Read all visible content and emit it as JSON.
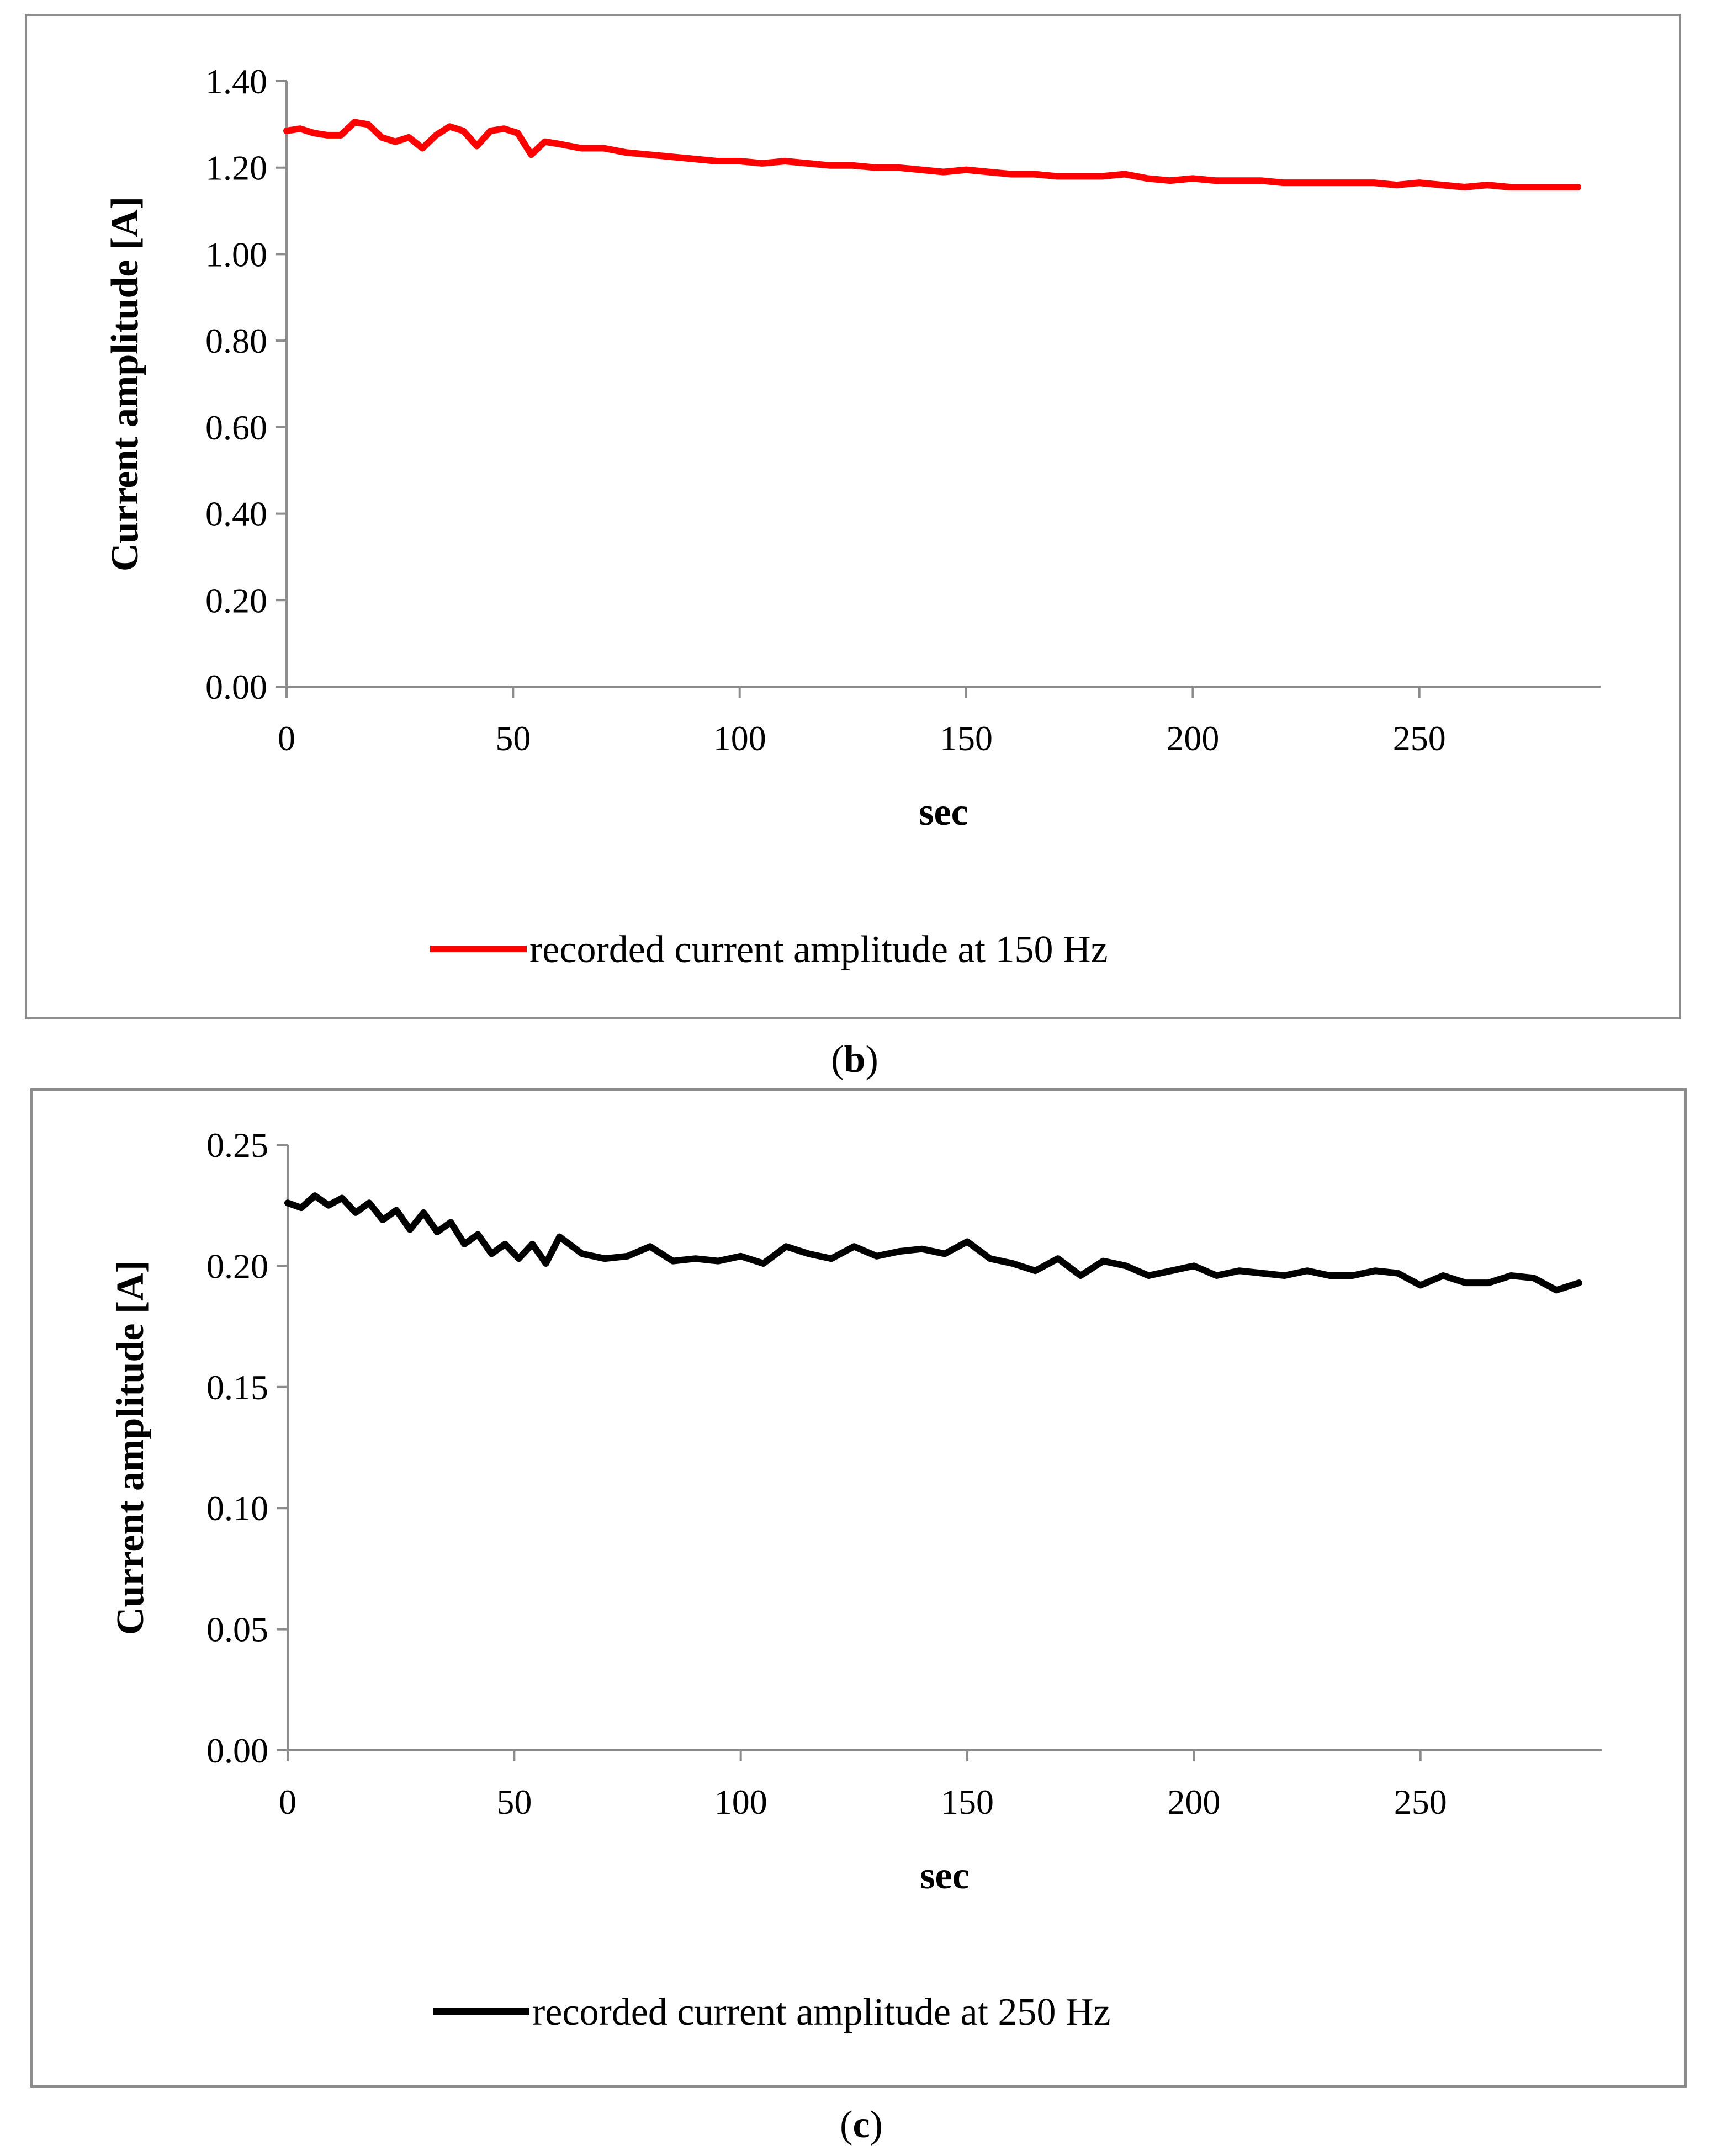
{
  "chart_data": [
    {
      "type": "line",
      "panel_label": "b",
      "xlabel": "sec",
      "ylabel": "Current amplitude [A]",
      "xlim": [
        0,
        290
      ],
      "ylim": [
        0,
        1.4
      ],
      "xticks": [
        "0",
        "50",
        "100",
        "150",
        "200",
        "250"
      ],
      "yticks": [
        "0.00",
        "0.20",
        "0.40",
        "0.60",
        "0.80",
        "1.00",
        "1.20",
        "1.40"
      ],
      "grid": false,
      "legend": "bottom-center",
      "series": [
        {
          "name": "recorded current amplitude at 150 Hz",
          "color": "#ff0000",
          "x": [
            0,
            3,
            6,
            9,
            12,
            15,
            18,
            21,
            24,
            27,
            30,
            33,
            36,
            39,
            42,
            45,
            48,
            51,
            54,
            57,
            60,
            65,
            70,
            75,
            80,
            85,
            90,
            95,
            100,
            105,
            110,
            115,
            120,
            125,
            130,
            135,
            140,
            145,
            150,
            155,
            160,
            165,
            170,
            175,
            180,
            185,
            190,
            195,
            200,
            205,
            210,
            215,
            220,
            225,
            230,
            235,
            240,
            245,
            250,
            255,
            260,
            265,
            270,
            275,
            280,
            285
          ],
          "values": [
            1.285,
            1.29,
            1.28,
            1.275,
            1.275,
            1.305,
            1.3,
            1.27,
            1.26,
            1.27,
            1.245,
            1.275,
            1.295,
            1.285,
            1.25,
            1.285,
            1.29,
            1.28,
            1.23,
            1.26,
            1.255,
            1.245,
            1.245,
            1.235,
            1.23,
            1.225,
            1.22,
            1.215,
            1.215,
            1.21,
            1.215,
            1.21,
            1.205,
            1.205,
            1.2,
            1.2,
            1.195,
            1.19,
            1.195,
            1.19,
            1.185,
            1.185,
            1.18,
            1.18,
            1.18,
            1.185,
            1.175,
            1.17,
            1.175,
            1.17,
            1.17,
            1.17,
            1.165,
            1.165,
            1.165,
            1.165,
            1.165,
            1.16,
            1.165,
            1.16,
            1.155,
            1.16,
            1.155,
            1.155,
            1.155,
            1.155
          ]
        }
      ]
    },
    {
      "type": "line",
      "panel_label": "c",
      "xlabel": "sec",
      "ylabel": "Current amplitude [A]",
      "xlim": [
        0,
        290
      ],
      "ylim": [
        0,
        0.25
      ],
      "xticks": [
        "0",
        "50",
        "100",
        "150",
        "200",
        "250"
      ],
      "yticks": [
        "0.00",
        "0.05",
        "0.10",
        "0.15",
        "0.20",
        "0.25"
      ],
      "grid": false,
      "legend": "bottom-center",
      "series": [
        {
          "name": "recorded current amplitude at 250 Hz",
          "color": "#000000",
          "x": [
            0,
            3,
            6,
            9,
            12,
            15,
            18,
            21,
            24,
            27,
            30,
            33,
            36,
            39,
            42,
            45,
            48,
            51,
            54,
            57,
            60,
            65,
            70,
            75,
            80,
            85,
            90,
            95,
            100,
            105,
            110,
            115,
            120,
            125,
            130,
            135,
            140,
            145,
            150,
            155,
            160,
            165,
            170,
            175,
            180,
            185,
            190,
            195,
            200,
            205,
            210,
            215,
            220,
            225,
            230,
            235,
            240,
            245,
            250,
            255,
            260,
            265,
            270,
            275,
            280,
            285
          ],
          "values": [
            0.226,
            0.224,
            0.229,
            0.225,
            0.228,
            0.222,
            0.226,
            0.219,
            0.223,
            0.215,
            0.222,
            0.214,
            0.218,
            0.209,
            0.213,
            0.205,
            0.209,
            0.203,
            0.209,
            0.201,
            0.212,
            0.205,
            0.203,
            0.204,
            0.208,
            0.202,
            0.203,
            0.202,
            0.204,
            0.201,
            0.208,
            0.205,
            0.203,
            0.208,
            0.204,
            0.206,
            0.207,
            0.205,
            0.21,
            0.203,
            0.201,
            0.198,
            0.203,
            0.196,
            0.202,
            0.2,
            0.196,
            0.198,
            0.2,
            0.196,
            0.198,
            0.197,
            0.196,
            0.198,
            0.196,
            0.196,
            0.198,
            0.197,
            0.192,
            0.196,
            0.193,
            0.193,
            0.196,
            0.195,
            0.19,
            0.193
          ]
        }
      ]
    }
  ]
}
